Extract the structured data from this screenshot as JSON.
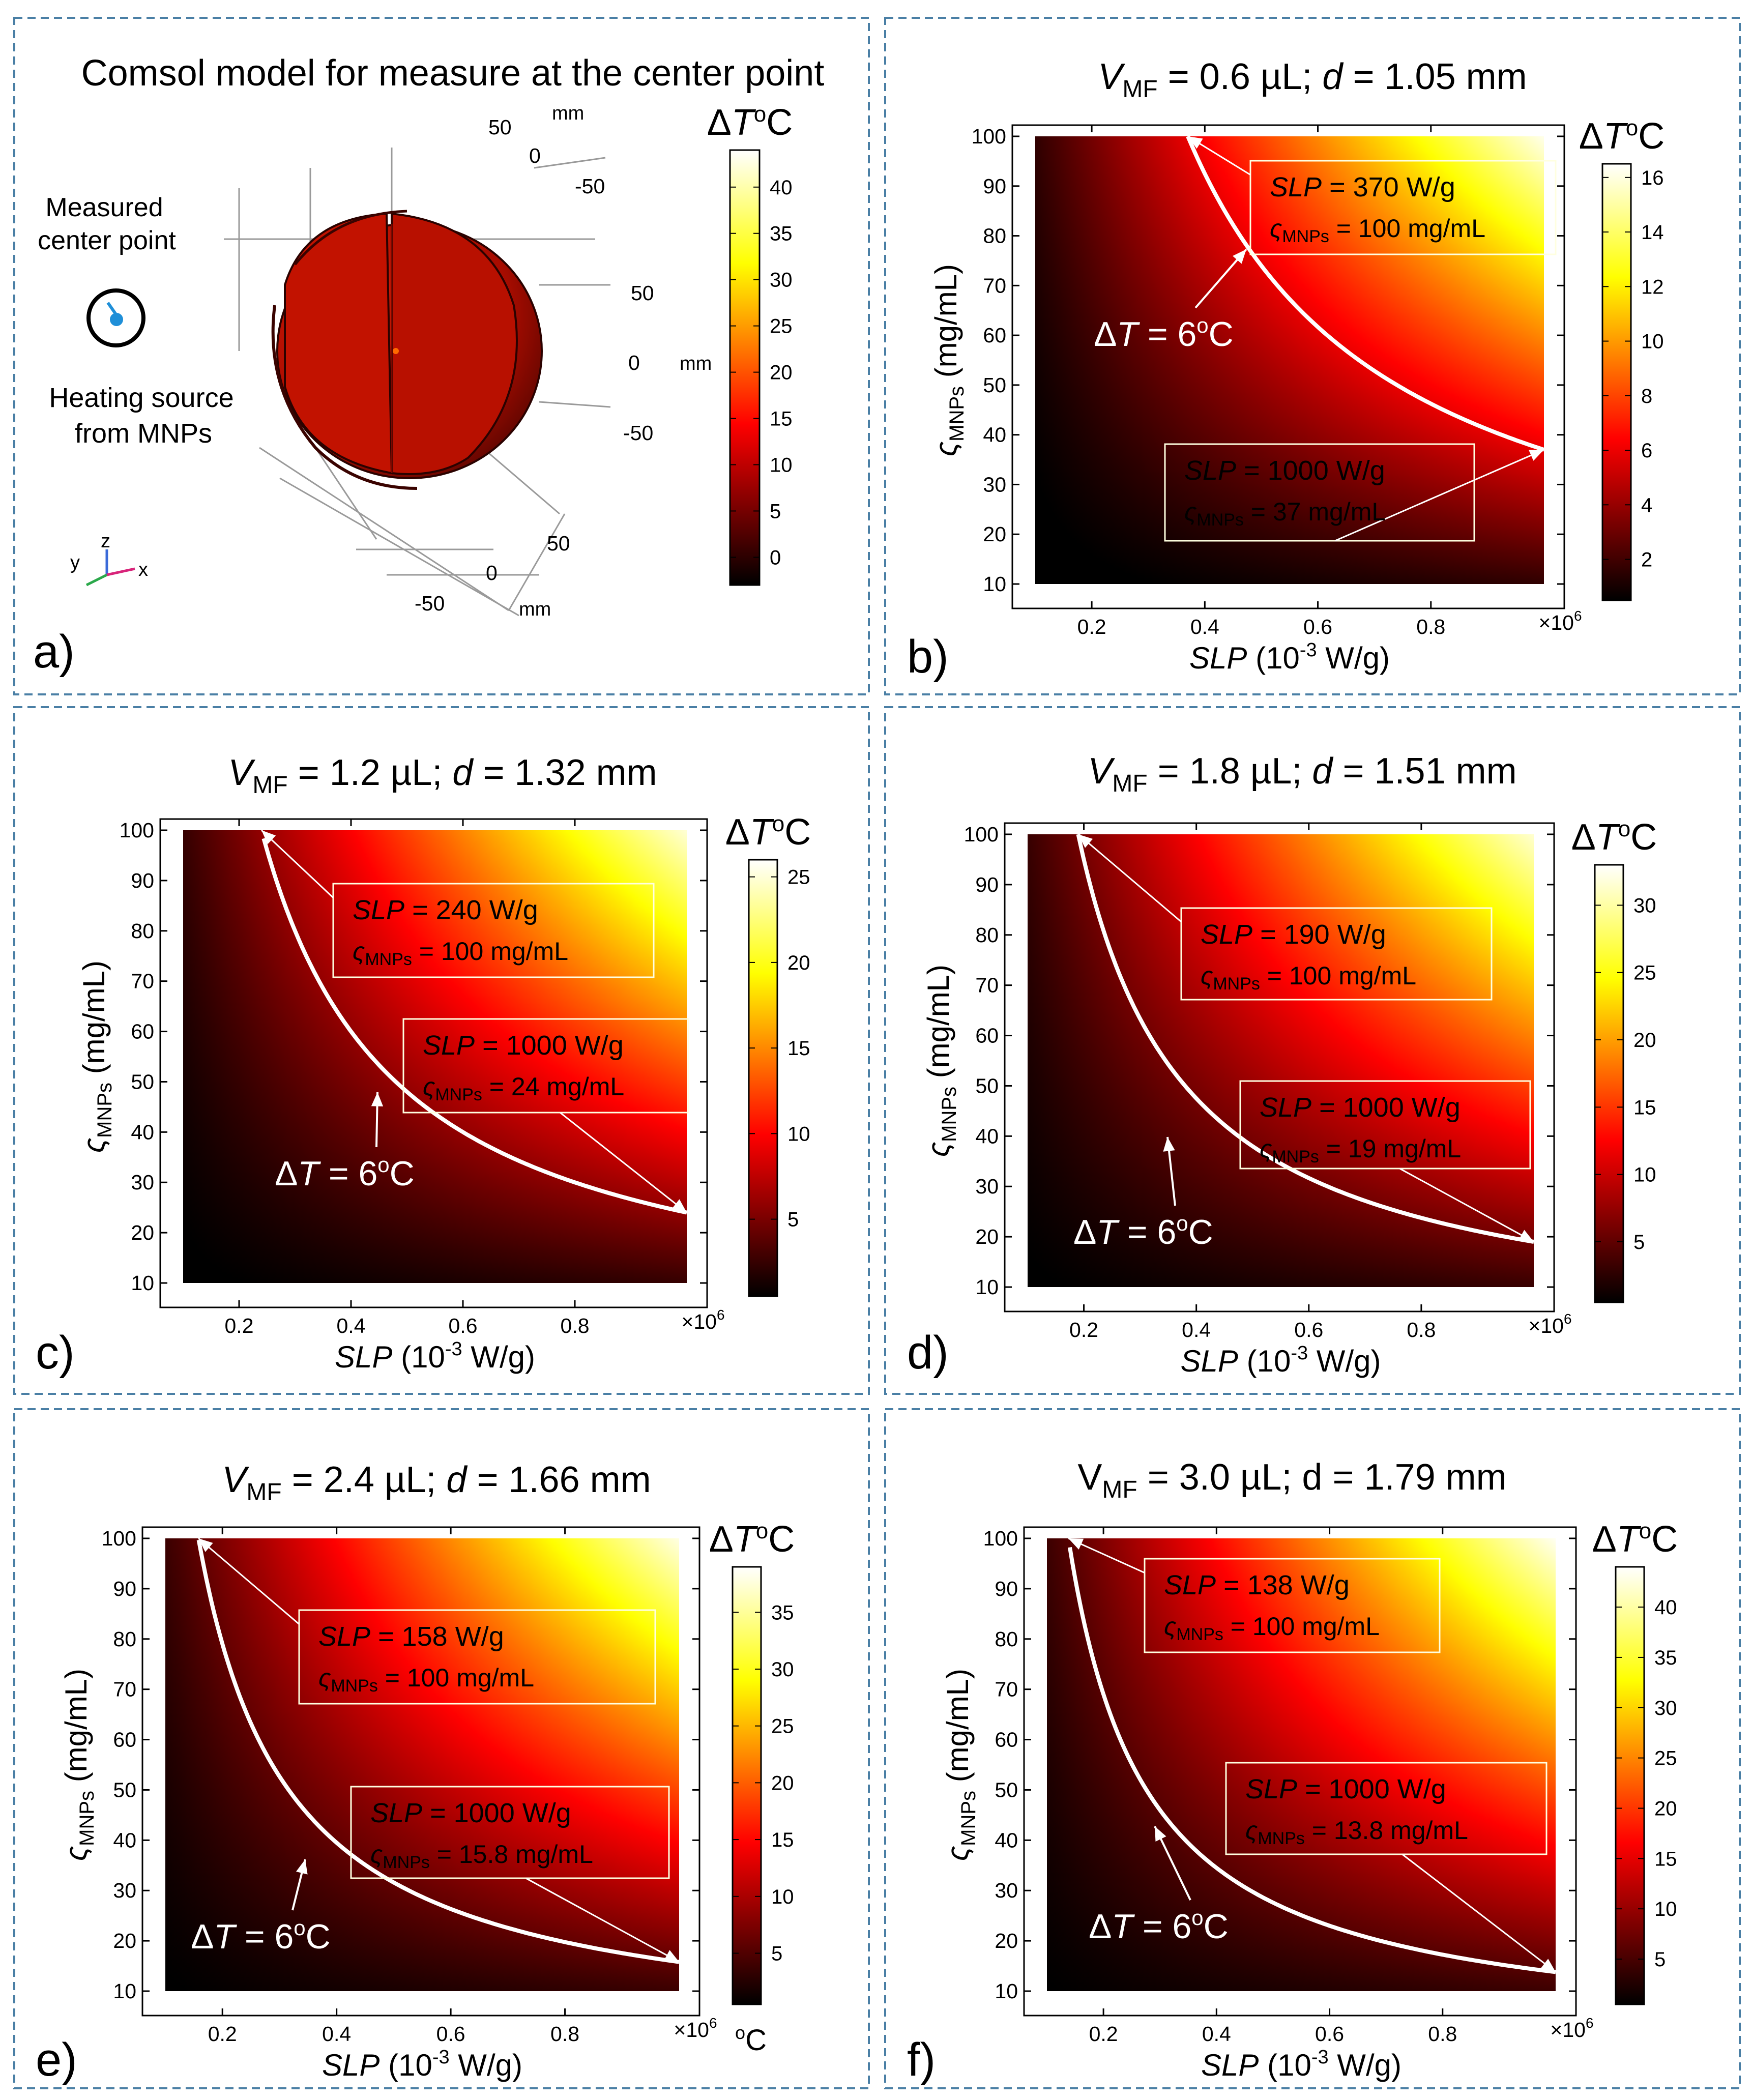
{
  "panel_a": {
    "title": "Comsol model for measure at the center point",
    "label": "a)",
    "callout_measured": [
      "Measured",
      "center point"
    ],
    "callout_heating": [
      "Heating source",
      "from MNPs"
    ],
    "axis_labels": {
      "top": [
        "50",
        "0",
        "-50"
      ],
      "right": [
        "50",
        "0",
        "-50"
      ],
      "bottom": [
        "50",
        "0",
        "-50"
      ],
      "unit": "mm"
    },
    "triad": {
      "y": "y",
      "z": "z",
      "x": "x"
    },
    "colorbar": {
      "label_main": "ΔT",
      "label_unit": "oC",
      "min": -3,
      "max": 44,
      "ticks": [
        0,
        5,
        10,
        15,
        20,
        25,
        30,
        35,
        40
      ]
    },
    "colors": {
      "body": "#c01000",
      "body_dark": "#5a0500",
      "rim": "#8a0a00"
    }
  },
  "chart_data": [
    {
      "id": "b",
      "type": "heatmap",
      "label": "b)",
      "title_parts": [
        "V",
        "MF",
        " = 0.6 µL; ",
        "d",
        " = 1.05 mm"
      ],
      "title_var_italic": true,
      "xlabel_parts": [
        "SLP",
        " (10",
        "-3",
        " W/g)"
      ],
      "ylabel_parts": [
        "ς",
        "MNPs",
        " (mg/mL)"
      ],
      "xticks": [
        0.2,
        0.4,
        0.6,
        0.8
      ],
      "xtick_labels": [
        "0.2",
        "0.4",
        "0.6",
        "0.8"
      ],
      "x_multiplier": "×10",
      "x_multiplier_exp": "6",
      "xlim": [
        0.1,
        1.0
      ],
      "yticks": [
        10,
        20,
        30,
        40,
        50,
        60,
        70,
        80,
        90,
        100
      ],
      "ytick_labels": [
        "10",
        "20",
        "30",
        "40",
        "50",
        "60",
        "70",
        "80",
        "90",
        "100"
      ],
      "ylim": [
        10,
        100
      ],
      "colorbar": {
        "label_main": "ΔT",
        "label_unit": "oC",
        "min": 0.5,
        "max": 16.5,
        "ticks": [
          2,
          4,
          6,
          8,
          10,
          12,
          14,
          16
        ],
        "tick_labels": [
          "2",
          "4",
          "6",
          "8",
          "10",
          "12",
          "14",
          "16"
        ]
      },
      "contour": {
        "level_text": [
          "ΔT",
          " = 6",
          "o",
          "C"
        ],
        "a": 370,
        "b": 37
      },
      "annotations": [
        {
          "slp_text": [
            "SLP",
            " = 370 W/g"
          ],
          "conc_text": [
            "ς",
            "MNPs",
            " = 100 mg/mL"
          ]
        },
        {
          "slp_text": [
            "SLP",
            " = 1000 W/g"
          ],
          "conc_text": [
            "ς",
            "MNPs",
            " = 37 mg/mL"
          ]
        }
      ]
    },
    {
      "id": "c",
      "type": "heatmap",
      "label": "c)",
      "title_parts": [
        "V",
        "MF",
        " = 1.2 µL; ",
        "d",
        " = 1.32 mm"
      ],
      "title_var_italic": true,
      "xlabel_parts": [
        "SLP",
        " (10",
        "-3",
        " W/g)"
      ],
      "ylabel_parts": [
        "ς",
        "MNPs",
        " (mg/mL)"
      ],
      "xticks": [
        0.2,
        0.4,
        0.6,
        0.8
      ],
      "xtick_labels": [
        "0.2",
        "0.4",
        "0.6",
        "0.8"
      ],
      "x_multiplier": "×10",
      "x_multiplier_exp": "6",
      "xlim": [
        0.1,
        1.0
      ],
      "yticks": [
        10,
        20,
        30,
        40,
        50,
        60,
        70,
        80,
        90,
        100
      ],
      "ytick_labels": [
        "10",
        "20",
        "30",
        "40",
        "50",
        "60",
        "70",
        "80",
        "90",
        "100"
      ],
      "ylim": [
        10,
        100
      ],
      "colorbar": {
        "label_main": "ΔT",
        "label_unit": "oC",
        "min": 0.5,
        "max": 26,
        "ticks": [
          5,
          10,
          15,
          20,
          25
        ],
        "tick_labels": [
          "5",
          "10",
          "15",
          "20",
          "25"
        ]
      },
      "contour": {
        "level_text": [
          "ΔT",
          " = 6",
          "o",
          "C"
        ],
        "a": 240,
        "b": 24
      },
      "annotations": [
        {
          "slp_text": [
            "SLP",
            " = 240 W/g"
          ],
          "conc_text": [
            "ς",
            "MNPs",
            " = 100 mg/mL"
          ]
        },
        {
          "slp_text": [
            "SLP",
            " = 1000 W/g"
          ],
          "conc_text": [
            "ς",
            "MNPs",
            " = 24 mg/mL"
          ]
        }
      ]
    },
    {
      "id": "d",
      "type": "heatmap",
      "label": "d)",
      "title_parts": [
        "V",
        "MF",
        " = 1.8 µL; ",
        "d",
        " = 1.51 mm"
      ],
      "title_var_italic": true,
      "xlabel_parts": [
        "SLP",
        " (10",
        "-3",
        " W/g)"
      ],
      "ylabel_parts": [
        "ς",
        "MNPs",
        " (mg/mL)"
      ],
      "xticks": [
        0.2,
        0.4,
        0.6,
        0.8
      ],
      "xtick_labels": [
        "0.2",
        "0.4",
        "0.6",
        "0.8"
      ],
      "x_multiplier": "×10",
      "x_multiplier_exp": "6",
      "xlim": [
        0.1,
        1.0
      ],
      "yticks": [
        10,
        20,
        30,
        40,
        50,
        60,
        70,
        80,
        90,
        100
      ],
      "ytick_labels": [
        "10",
        "20",
        "30",
        "40",
        "50",
        "60",
        "70",
        "80",
        "90",
        "100"
      ],
      "ylim": [
        10,
        100
      ],
      "colorbar": {
        "label_main": "ΔT",
        "label_unit": "oC",
        "min": 0.5,
        "max": 33,
        "ticks": [
          5,
          10,
          15,
          20,
          25,
          30
        ],
        "tick_labels": [
          "5",
          "10",
          "15",
          "20",
          "25",
          "30"
        ]
      },
      "contour": {
        "level_text": [
          "ΔT",
          " = 6",
          "o",
          "C"
        ],
        "a": 190,
        "b": 19
      },
      "annotations": [
        {
          "slp_text": [
            "SLP",
            " = 190 W/g"
          ],
          "conc_text": [
            "ς",
            "MNPs",
            " = 100 mg/mL"
          ]
        },
        {
          "slp_text": [
            "SLP",
            " = 1000 W/g"
          ],
          "conc_text": [
            "ς",
            "MNPs",
            " = 19 mg/mL"
          ]
        }
      ]
    },
    {
      "id": "e",
      "type": "heatmap",
      "label": "e)",
      "title_parts": [
        "V",
        "MF",
        " = 2.4 µL; ",
        "d",
        " = 1.66 mm"
      ],
      "title_var_italic": true,
      "xlabel_parts": [
        "SLP",
        " (10",
        "-3",
        " W/g)"
      ],
      "ylabel_parts": [
        "ς",
        "MNPs",
        " (mg/mL)"
      ],
      "xticks": [
        0.2,
        0.4,
        0.6,
        0.8
      ],
      "xtick_labels": [
        "0.2",
        "0.4",
        "0.6",
        "0.8"
      ],
      "x_multiplier": "×10",
      "x_multiplier_exp": "6",
      "xlim": [
        0.1,
        1.0
      ],
      "yticks": [
        10,
        20,
        30,
        40,
        50,
        60,
        70,
        80,
        90,
        100
      ],
      "ytick_labels": [
        "10",
        "20",
        "30",
        "40",
        "50",
        "60",
        "70",
        "80",
        "90",
        "100"
      ],
      "ylim": [
        10,
        100
      ],
      "colorbar": {
        "label_main": "ΔT",
        "label_unit": "oC",
        "bottom_unit": "oC",
        "min": 0.5,
        "max": 39,
        "ticks": [
          5,
          10,
          15,
          20,
          25,
          30,
          35
        ],
        "tick_labels": [
          "5",
          "10",
          "15",
          "20",
          "25",
          "30",
          "35"
        ]
      },
      "contour": {
        "level_text": [
          "ΔT",
          " = 6",
          "o",
          "C"
        ],
        "a": 158,
        "b": 15.8
      },
      "annotations": [
        {
          "slp_text": [
            "SLP",
            " = 158 W/g"
          ],
          "conc_text": [
            "ς",
            "MNPs",
            " = 100 mg/mL"
          ]
        },
        {
          "slp_text": [
            "SLP",
            " = 1000 W/g"
          ],
          "conc_text": [
            "ς",
            "MNPs",
            " = 15.8 mg/mL"
          ]
        }
      ]
    },
    {
      "id": "f",
      "type": "heatmap",
      "label": "f)",
      "title_parts": [
        "V",
        "MF",
        " = 3.0 µL; d = 1.79 mm"
      ],
      "title_var_italic": false,
      "xlabel_parts": [
        "SLP",
        " (10",
        "-3",
        " W/g)"
      ],
      "ylabel_parts": [
        "ς",
        "MNPs",
        " (mg/mL)"
      ],
      "xticks": [
        0.2,
        0.4,
        0.6,
        0.8
      ],
      "xtick_labels": [
        "0.2",
        "0.4",
        "0.6",
        "0.8"
      ],
      "x_multiplier": "×10",
      "x_multiplier_exp": "6",
      "xlim": [
        0.1,
        1.0
      ],
      "yticks": [
        10,
        20,
        30,
        40,
        50,
        60,
        70,
        80,
        90,
        100
      ],
      "ytick_labels": [
        "10",
        "20",
        "30",
        "40",
        "50",
        "60",
        "70",
        "80",
        "90",
        "100"
      ],
      "ylim": [
        10,
        100
      ],
      "colorbar": {
        "label_main": "ΔT",
        "label_unit": "oC",
        "min": 0.5,
        "max": 44,
        "ticks": [
          5,
          10,
          15,
          20,
          25,
          30,
          35,
          40
        ],
        "tick_labels": [
          "5",
          "10",
          "15",
          "20",
          "25",
          "30",
          "35",
          "40"
        ]
      },
      "contour": {
        "level_text": [
          "ΔT",
          " = 6",
          "o",
          "C"
        ],
        "a": 138,
        "b": 13.8
      },
      "annotations": [
        {
          "slp_text": [
            "SLP",
            " = 138 W/g"
          ],
          "conc_text": [
            "ς",
            "MNPs",
            " = 100 mg/mL"
          ]
        },
        {
          "slp_text": [
            "SLP",
            " = 1000 W/g"
          ],
          "conc_text": [
            "ς",
            "MNPs",
            " = 13.8 mg/mL"
          ]
        }
      ]
    }
  ],
  "style": {
    "panel_border": "#4a7fa5",
    "contour_color": "#ffffff",
    "colormap": "hot"
  }
}
